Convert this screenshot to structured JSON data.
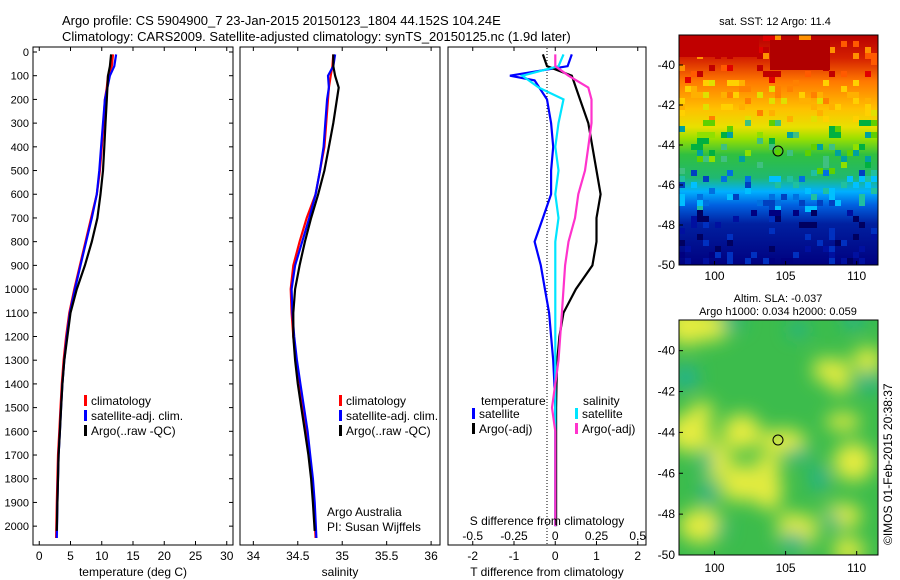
{
  "header": {
    "line1": "Argo profile: CS 5904900_7 23-Jan-2015 20150123_1804 44.152S 104.24E",
    "line2": "Climatology: CARS2009. Satellite-adjusted climatology: synTS_20150125.nc (1.9d later)"
  },
  "credit": {
    "line1": "Argo Australia",
    "line2": "PI: Susan Wijffels"
  },
  "watermark": "©IMOS 01-Feb-2015 20:38:37",
  "colors": {
    "climatology": "#ff0000",
    "satellite": "#0000ff",
    "argo": "#000000",
    "satellite_sal": "#00e5ff",
    "argo_sal": "#ff33cc"
  },
  "chart_data": [
    {
      "type": "line",
      "panel": "temperature",
      "xlabel": "temperature (deg C)",
      "xlim": [
        -1,
        31
      ],
      "xticks": [
        "0",
        "5",
        "10",
        "15",
        "20",
        "25",
        "30"
      ],
      "ylim": [
        0,
        2050
      ],
      "yticks": [
        "0",
        "100",
        "200",
        "300",
        "400",
        "500",
        "600",
        "700",
        "800",
        "900",
        "1000",
        "1100",
        "1200",
        "1300",
        "1400",
        "1500",
        "1600",
        "1700",
        "1800",
        "1900",
        "2000"
      ],
      "y_reversed": true,
      "legend": [
        "climatology",
        "satellite-adj. clim.",
        "Argo(..raw -QC)"
      ],
      "series": [
        {
          "name": "climatology",
          "points": [
            [
              11.8,
              10
            ],
            [
              11.6,
              60
            ],
            [
              11.0,
              100
            ],
            [
              10.8,
              150
            ],
            [
              10.5,
              200
            ],
            [
              10.3,
              300
            ],
            [
              10.0,
              400
            ],
            [
              9.7,
              500
            ],
            [
              9.2,
              600
            ],
            [
              8.3,
              700
            ],
            [
              7.4,
              800
            ],
            [
              6.5,
              900
            ],
            [
              5.6,
              1000
            ],
            [
              4.8,
              1100
            ],
            [
              4.3,
              1200
            ],
            [
              3.9,
              1300
            ],
            [
              3.6,
              1400
            ],
            [
              3.4,
              1500
            ],
            [
              3.2,
              1600
            ],
            [
              3.0,
              1700
            ],
            [
              2.9,
              1800
            ],
            [
              2.8,
              1900
            ],
            [
              2.7,
              2050
            ]
          ]
        },
        {
          "name": "satellite-adj. clim.",
          "points": [
            [
              12.3,
              10
            ],
            [
              12.0,
              60
            ],
            [
              11.3,
              100
            ],
            [
              10.9,
              150
            ],
            [
              10.5,
              200
            ],
            [
              10.2,
              300
            ],
            [
              9.9,
              400
            ],
            [
              9.6,
              500
            ],
            [
              9.2,
              600
            ],
            [
              8.4,
              700
            ],
            [
              7.5,
              800
            ],
            [
              6.6,
              900
            ],
            [
              5.7,
              1000
            ],
            [
              4.9,
              1100
            ],
            [
              4.4,
              1200
            ],
            [
              4.0,
              1300
            ],
            [
              3.7,
              1400
            ],
            [
              3.5,
              1500
            ],
            [
              3.3,
              1600
            ],
            [
              3.1,
              1700
            ],
            [
              3.0,
              1800
            ],
            [
              2.9,
              1900
            ],
            [
              2.8,
              2050
            ]
          ]
        },
        {
          "name": "Argo(..raw -QC)",
          "points": [
            [
              11.5,
              10
            ],
            [
              11.3,
              60
            ],
            [
              11.0,
              100
            ],
            [
              10.9,
              150
            ],
            [
              10.8,
              200
            ],
            [
              10.6,
              300
            ],
            [
              10.4,
              400
            ],
            [
              10.2,
              500
            ],
            [
              9.8,
              600
            ],
            [
              9.3,
              700
            ],
            [
              8.4,
              800
            ],
            [
              7.3,
              900
            ],
            [
              6.0,
              1000
            ],
            [
              5.0,
              1100
            ],
            [
              4.5,
              1200
            ],
            [
              4.0,
              1300
            ],
            [
              3.7,
              1400
            ],
            [
              3.5,
              1500
            ],
            [
              3.3,
              1600
            ],
            [
              3.1,
              1700
            ],
            [
              3.0,
              1800
            ],
            [
              2.9,
              1900
            ],
            [
              2.8,
              2020
            ]
          ]
        }
      ]
    },
    {
      "type": "line",
      "panel": "salinity",
      "xlabel": "salinity",
      "xlim": [
        33.85,
        36.1
      ],
      "xticks": [
        "34",
        "34.5",
        "35",
        "35.5",
        "36"
      ],
      "ylim": [
        0,
        2050
      ],
      "y_reversed": true,
      "legend": [
        "climatology",
        "satellite-adj. clim.",
        "Argo(..raw -QC)"
      ],
      "series": [
        {
          "name": "climatology",
          "points": [
            [
              34.9,
              10
            ],
            [
              34.89,
              60
            ],
            [
              34.87,
              100
            ],
            [
              34.85,
              150
            ],
            [
              34.84,
              200
            ],
            [
              34.82,
              300
            ],
            [
              34.8,
              400
            ],
            [
              34.75,
              500
            ],
            [
              34.7,
              600
            ],
            [
              34.6,
              700
            ],
            [
              34.52,
              800
            ],
            [
              34.45,
              900
            ],
            [
              34.42,
              1000
            ],
            [
              34.43,
              1100
            ],
            [
              34.45,
              1200
            ],
            [
              34.48,
              1300
            ],
            [
              34.52,
              1400
            ],
            [
              34.56,
              1500
            ],
            [
              34.6,
              1600
            ],
            [
              34.63,
              1700
            ],
            [
              34.66,
              1800
            ],
            [
              34.68,
              1900
            ],
            [
              34.7,
              2050
            ]
          ]
        },
        {
          "name": "satellite-adj. clim.",
          "points": [
            [
              34.92,
              10
            ],
            [
              34.9,
              60
            ],
            [
              34.84,
              100
            ],
            [
              34.85,
              150
            ],
            [
              34.83,
              200
            ],
            [
              34.81,
              300
            ],
            [
              34.79,
              400
            ],
            [
              34.75,
              500
            ],
            [
              34.7,
              600
            ],
            [
              34.63,
              700
            ],
            [
              34.55,
              800
            ],
            [
              34.47,
              900
            ],
            [
              34.43,
              1000
            ],
            [
              34.44,
              1100
            ],
            [
              34.46,
              1200
            ],
            [
              34.49,
              1300
            ],
            [
              34.53,
              1400
            ],
            [
              34.57,
              1500
            ],
            [
              34.61,
              1600
            ],
            [
              34.64,
              1700
            ],
            [
              34.67,
              1800
            ],
            [
              34.69,
              1900
            ],
            [
              34.71,
              2050
            ]
          ]
        },
        {
          "name": "Argo(..raw -QC)",
          "points": [
            [
              34.9,
              10
            ],
            [
              34.9,
              60
            ],
            [
              34.92,
              100
            ],
            [
              34.96,
              150
            ],
            [
              34.94,
              200
            ],
            [
              34.9,
              300
            ],
            [
              34.85,
              400
            ],
            [
              34.8,
              500
            ],
            [
              34.73,
              600
            ],
            [
              34.65,
              700
            ],
            [
              34.58,
              800
            ],
            [
              34.52,
              900
            ],
            [
              34.47,
              1000
            ],
            [
              34.45,
              1100
            ],
            [
              34.45,
              1200
            ],
            [
              34.47,
              1300
            ],
            [
              34.5,
              1400
            ],
            [
              34.54,
              1500
            ],
            [
              34.58,
              1600
            ],
            [
              34.62,
              1700
            ],
            [
              34.65,
              1800
            ],
            [
              34.67,
              1900
            ],
            [
              34.69,
              2020
            ]
          ]
        }
      ]
    },
    {
      "type": "line",
      "panel": "difference",
      "xlabel": "T difference from climatology",
      "xlabel2": "S difference from climatology",
      "xlim": [
        -2.6,
        2.2
      ],
      "xticks": [
        "-2",
        "-1",
        "0",
        "1",
        "2"
      ],
      "s_ticks": [
        "-0.5",
        "-0.25",
        "0",
        "0.25",
        "0.5"
      ],
      "ylim": [
        0,
        2050
      ],
      "y_reversed": true,
      "legend_headers": [
        "temperature",
        "salinity"
      ],
      "legend": [
        "satellite",
        "Argo(-adj)",
        "satellite",
        "Argo(-adj)"
      ],
      "series": [
        {
          "name": "satellite",
          "group": "temperature",
          "points": [
            [
              0.4,
              10
            ],
            [
              0.3,
              60
            ],
            [
              -1.1,
              100
            ],
            [
              -0.5,
              120
            ],
            [
              -0.2,
              200
            ],
            [
              -0.1,
              300
            ],
            [
              -0.05,
              400
            ],
            [
              -0.1,
              500
            ],
            [
              -0.1,
              600
            ],
            [
              -0.3,
              700
            ],
            [
              -0.5,
              800
            ],
            [
              -0.35,
              900
            ],
            [
              -0.25,
              1000
            ],
            [
              -0.15,
              1100
            ],
            [
              -0.1,
              1200
            ],
            [
              -0.05,
              1300
            ],
            [
              -0.02,
              1400
            ],
            [
              0,
              1500
            ],
            [
              0,
              1600
            ],
            [
              0,
              1700
            ],
            [
              0,
              1800
            ],
            [
              0,
              1900
            ],
            [
              0,
              2000
            ]
          ]
        },
        {
          "name": "Argo(-adj)",
          "group": "temperature",
          "points": [
            [
              -0.3,
              10
            ],
            [
              -0.2,
              60
            ],
            [
              0.4,
              100
            ],
            [
              0.6,
              200
            ],
            [
              0.8,
              300
            ],
            [
              0.9,
              400
            ],
            [
              1.0,
              500
            ],
            [
              1.1,
              600
            ],
            [
              1.0,
              700
            ],
            [
              1.0,
              800
            ],
            [
              0.9,
              900
            ],
            [
              0.5,
              1000
            ],
            [
              0.2,
              1100
            ],
            [
              0.1,
              1200
            ],
            [
              0.05,
              1300
            ],
            [
              0.03,
              1400
            ],
            [
              0.02,
              1500
            ],
            [
              0.02,
              1600
            ],
            [
              0.02,
              1700
            ],
            [
              0.02,
              1800
            ],
            [
              0.02,
              1900
            ],
            [
              0.02,
              2000
            ]
          ]
        },
        {
          "name": "satellite",
          "group": "salinity",
          "points": [
            [
              0.05,
              10
            ],
            [
              0.02,
              60
            ],
            [
              -0.2,
              100
            ],
            [
              -0.1,
              150
            ],
            [
              0.05,
              200
            ],
            [
              0.02,
              300
            ],
            [
              0.0,
              400
            ],
            [
              0.02,
              500
            ],
            [
              0.0,
              600
            ],
            [
              0.02,
              700
            ],
            [
              0.0,
              800
            ],
            [
              0.0,
              900
            ],
            [
              0.0,
              1000
            ],
            [
              0.0,
              1100
            ],
            [
              0.0,
              1200
            ],
            [
              0.0,
              1300
            ],
            [
              0.0,
              1400
            ],
            [
              0.0,
              1500
            ],
            [
              0.0,
              1600
            ],
            [
              0.0,
              1700
            ],
            [
              0.0,
              1800
            ],
            [
              0.0,
              1900
            ],
            [
              0.0,
              2000
            ]
          ]
        },
        {
          "name": "Argo(-adj)",
          "group": "salinity",
          "points": [
            [
              0.0,
              10
            ],
            [
              0.0,
              60
            ],
            [
              0.08,
              100
            ],
            [
              0.2,
              150
            ],
            [
              0.22,
              200
            ],
            [
              0.22,
              300
            ],
            [
              0.2,
              400
            ],
            [
              0.18,
              500
            ],
            [
              0.14,
              600
            ],
            [
              0.12,
              700
            ],
            [
              0.08,
              800
            ],
            [
              0.06,
              900
            ],
            [
              0.05,
              1000
            ],
            [
              0.04,
              1100
            ],
            [
              0.03,
              1200
            ],
            [
              0.02,
              1300
            ],
            [
              0.0,
              1400
            ],
            [
              -0.02,
              1500
            ],
            [
              0.0,
              1600
            ],
            [
              0.0,
              1700
            ],
            [
              0.0,
              1800
            ],
            [
              0.0,
              1900
            ],
            [
              0.0,
              2000
            ]
          ]
        }
      ]
    },
    {
      "type": "heatmap",
      "panel": "sst_map",
      "title": "sat. SST: 12 Argo: 11.4",
      "xlim": [
        97.5,
        111.5
      ],
      "ylim": [
        -50,
        -38.5
      ],
      "xticks": [
        "100",
        "105",
        "110"
      ],
      "yticks": [
        "-40",
        "-42",
        "-44",
        "-46",
        "-48",
        "-50"
      ],
      "marker": {
        "lon": 104.24,
        "lat": -44.152
      }
    },
    {
      "type": "heatmap",
      "panel": "sla_map",
      "title_line1": "Altim. SLA: -0.037",
      "title_line2": "Argo h1000: 0.034 h2000: 0.059",
      "xlim": [
        97.5,
        111.5
      ],
      "ylim": [
        -50,
        -38.5
      ],
      "xticks": [
        "100",
        "105",
        "110"
      ],
      "yticks": [
        "-40",
        "-42",
        "-44",
        "-46",
        "-48",
        "-50"
      ],
      "marker": {
        "lon": 104.24,
        "lat": -44.152
      }
    }
  ]
}
